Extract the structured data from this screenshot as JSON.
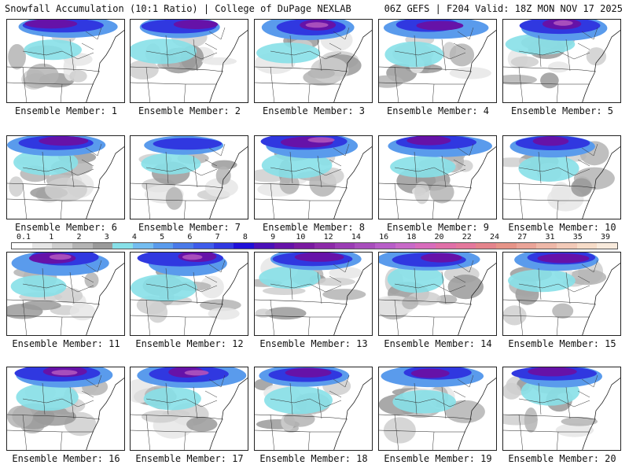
{
  "header": {
    "title_left": "Snowfall Accumulation (10:1 Ratio) | College of DuPage NEXLAB",
    "title_right": "06Z GEFS | F204 Valid: 18Z MON NOV 17 2025"
  },
  "legend": {
    "labels": [
      "0.1",
      "1",
      "2",
      "3",
      "4",
      "5",
      "6",
      "7",
      "8",
      "9",
      "10",
      "12",
      "14",
      "16",
      "18",
      "20",
      "22",
      "24",
      "27",
      "31",
      "35",
      "39"
    ],
    "colors": [
      "#ffffff",
      "#e6e6e6",
      "#cfcfcf",
      "#b4b4b4",
      "#9a9a9a",
      "#87e0e8",
      "#74bdf0",
      "#5a9bec",
      "#4a7ae8",
      "#3f5cea",
      "#3038e0",
      "#1f10d8",
      "#4a10b8",
      "#6612a8",
      "#7a1aa0",
      "#8c2aa8",
      "#9a3cb4",
      "#a84ebc",
      "#b85ec8",
      "#c86ac8",
      "#d86cbc",
      "#e070a8",
      "#e4789c",
      "#e4848c",
      "#e69488",
      "#eaa498",
      "#eeb8a8",
      "#f2cab8",
      "#f6dcc8",
      "#f8eadc"
    ]
  },
  "members": [
    {
      "label": "Ensemble Member: 1",
      "intensity": 2
    },
    {
      "label": "Ensemble Member: 2",
      "intensity": 2
    },
    {
      "label": "Ensemble Member: 3",
      "intensity": 3
    },
    {
      "label": "Ensemble Member: 4",
      "intensity": 2
    },
    {
      "label": "Ensemble Member: 5",
      "intensity": 3
    },
    {
      "label": "Ensemble Member: 6",
      "intensity": 2
    },
    {
      "label": "Ensemble Member: 7",
      "intensity": 1
    },
    {
      "label": "Ensemble Member: 8",
      "intensity": 3
    },
    {
      "label": "Ensemble Member: 9",
      "intensity": 2
    },
    {
      "label": "Ensemble Member: 10",
      "intensity": 2
    },
    {
      "label": "Ensemble Member: 11",
      "intensity": 3
    },
    {
      "label": "Ensemble Member: 12",
      "intensity": 3
    },
    {
      "label": "Ensemble Member: 13",
      "intensity": 2
    },
    {
      "label": "Ensemble Member: 14",
      "intensity": 2
    },
    {
      "label": "Ensemble Member: 15",
      "intensity": 2
    },
    {
      "label": "Ensemble Member: 16",
      "intensity": 3
    },
    {
      "label": "Ensemble Member: 17",
      "intensity": 3
    },
    {
      "label": "Ensemble Member: 18",
      "intensity": 2
    },
    {
      "label": "Ensemble Member: 19",
      "intensity": 2
    },
    {
      "label": "Ensemble Member: 20",
      "intensity": 2
    }
  ]
}
